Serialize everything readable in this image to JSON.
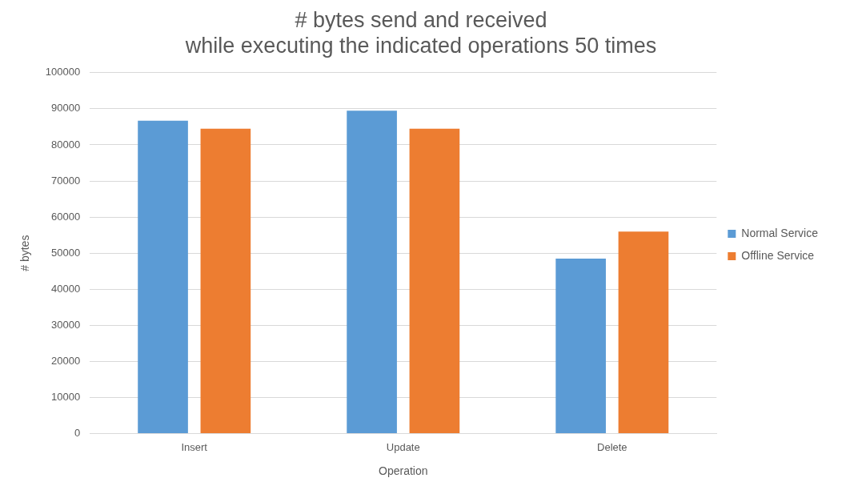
{
  "chart_data": {
    "type": "bar",
    "title": "# bytes send and received\nwhile executing the indicated operations 50 times",
    "xlabel": "Operation",
    "ylabel": "# bytes",
    "categories": [
      "Insert",
      "Update",
      "Delete"
    ],
    "series": [
      {
        "name": "Normal Service",
        "color": "#5b9bd5",
        "values": [
          86700,
          89500,
          48500
        ]
      },
      {
        "name": "Offline Service",
        "color": "#ed7d31",
        "values": [
          84500,
          84500,
          56000
        ]
      }
    ],
    "ylim": [
      0,
      100000
    ],
    "yticks": [
      0,
      10000,
      20000,
      30000,
      40000,
      50000,
      60000,
      70000,
      80000,
      90000,
      100000
    ],
    "grid": "y",
    "legend": "right"
  }
}
